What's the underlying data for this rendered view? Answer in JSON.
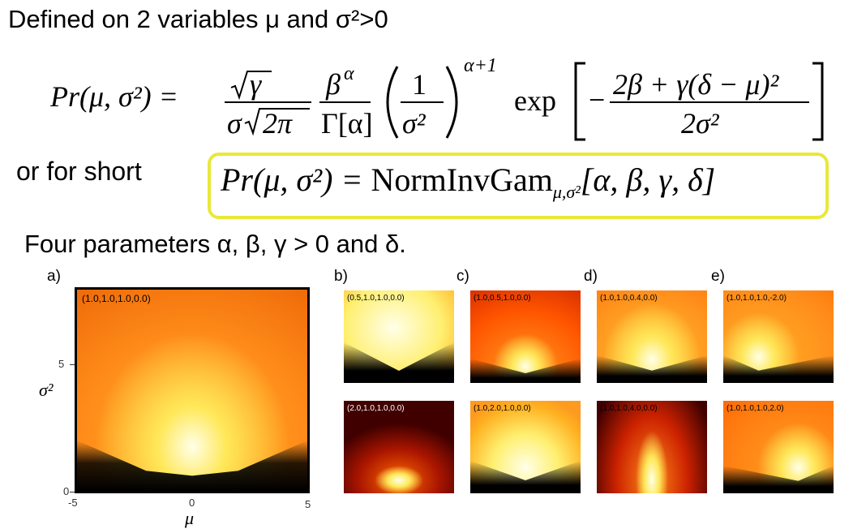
{
  "heading": {
    "text": "Defined on  2 variables μ and σ²>0"
  },
  "equation": {
    "lhs": "Pr(μ, σ²) =",
    "sqrt_num": "γ",
    "den_sigma": "σ",
    "den_sqrt": "2π",
    "beta_num": "β",
    "beta_sup": "α",
    "gamma_den": "Γ[α]",
    "one": "1",
    "sigma_sq": "σ²",
    "power": "α+1",
    "exp": "exp",
    "exp_num": "2β + γ(δ − μ)²",
    "exp_den": "2σ²",
    "minus": "−"
  },
  "short": {
    "label": "or for short",
    "formula_lhs": "Pr(μ, σ²) = ",
    "formula_name": "NormInvGam",
    "formula_sub": "μ,σ²",
    "formula_args": "[α, β, γ, δ]"
  },
  "params_text": "Four parameters α, β, γ > 0 and δ.",
  "panels": {
    "a": {
      "letter": "a)",
      "label": "(1.0,1.0,1.0,0.0)"
    },
    "b_top": {
      "letter": "b)",
      "label": "(0.5,1.0,1.0,0.0)"
    },
    "b_bot": {
      "label": "(2.0,1.0,1.0,0.0)"
    },
    "c_top": {
      "letter": "c)",
      "label": "(1.0,0.5,1.0,0.0)"
    },
    "c_bot": {
      "label": "(1.0,2.0,1.0,0.0)"
    },
    "d_top": {
      "letter": "d)",
      "label": "(1.0,1.0,0.4,0.0)"
    },
    "d_bot": {
      "label": "(1.0,1.0,4.0,0.0)"
    },
    "e_top": {
      "letter": "e)",
      "label": "(1.0,1.0,1.0,-2.0)"
    },
    "e_bot": {
      "label": "(1.0,1.0,1.0,2.0)"
    }
  },
  "axes": {
    "ylabel": "σ²",
    "xlabel": "μ",
    "yticks": [
      "5",
      "0"
    ],
    "xticks": [
      "-5",
      "0",
      "5"
    ]
  },
  "colors": {
    "box_border": "#e8e83a",
    "hot_white": "#ffffe8",
    "hot_yellow": "#ffe85a",
    "hot_orange": "#ff8c1a",
    "hot_red": "#cc2200",
    "hot_black": "#000000"
  }
}
